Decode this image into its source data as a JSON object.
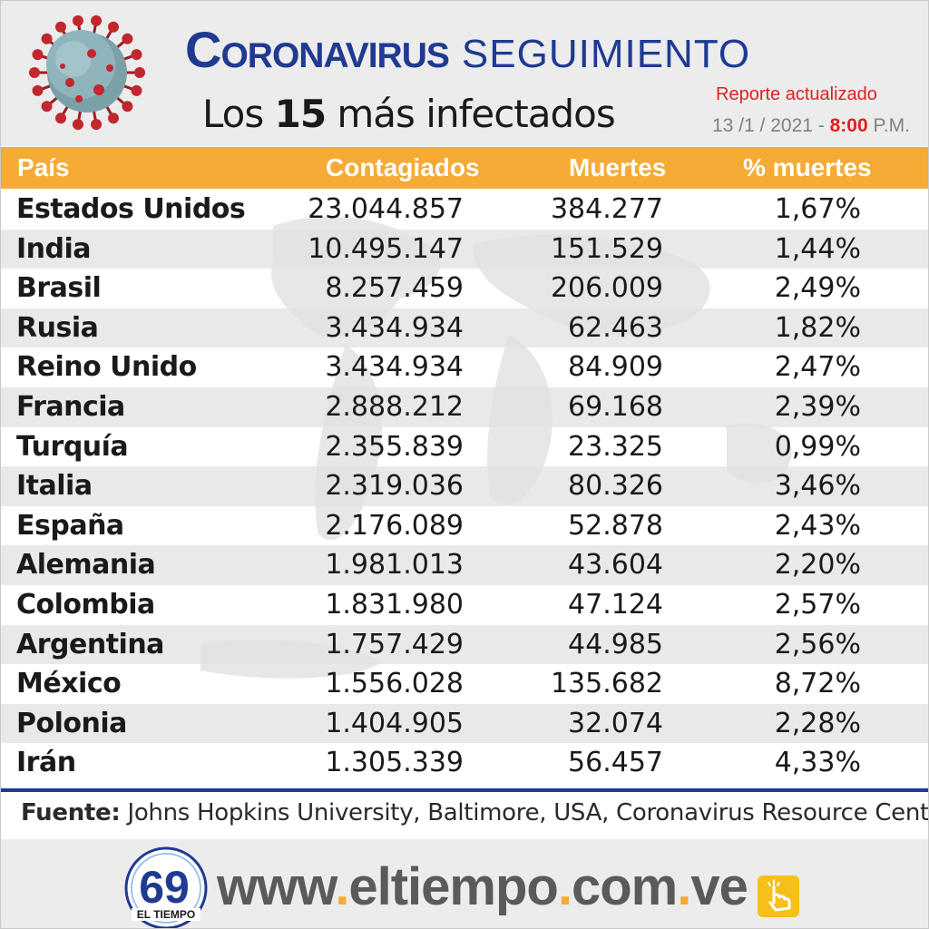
{
  "header": {
    "title_bold": "Coronavirus",
    "title_light": "SEGUIMIENTO",
    "subtitle_pre": "Los ",
    "subtitle_num": "15",
    "subtitle_post": " más infectados",
    "report_label": "Reporte actualizado",
    "report_date": "13 /1 / 2021 - ",
    "report_hour": "8:00",
    "report_ampm": " P.M."
  },
  "table": {
    "columns": [
      "País",
      "Contagiados",
      "Muertes",
      "% muertes"
    ],
    "rows": [
      {
        "country": "Estados Unidos",
        "cases": "23.044.857",
        "deaths": "384.277",
        "pct": "1,67%"
      },
      {
        "country": "India",
        "cases": "10.495.147",
        "deaths": "151.529",
        "pct": "1,44%"
      },
      {
        "country": "Brasil",
        "cases": "8.257.459",
        "deaths": "206.009",
        "pct": "2,49%"
      },
      {
        "country": "Rusia",
        "cases": "3.434.934",
        "deaths": "62.463",
        "pct": "1,82%"
      },
      {
        "country": "Reino Unido",
        "cases": "3.434.934",
        "deaths": "84.909",
        "pct": "2,47%"
      },
      {
        "country": "Francia",
        "cases": "2.888.212",
        "deaths": "69.168",
        "pct": "2,39%"
      },
      {
        "country": "Turquía",
        "cases": "2.355.839",
        "deaths": "23.325",
        "pct": "0,99%"
      },
      {
        "country": "Italia",
        "cases": "2.319.036",
        "deaths": "80.326",
        "pct": "3,46%"
      },
      {
        "country": "España",
        "cases": "2.176.089",
        "deaths": "52.878",
        "pct": "2,43%"
      },
      {
        "country": "Alemania",
        "cases": "1.981.013",
        "deaths": "43.604",
        "pct": "2,20%"
      },
      {
        "country": "Colombia",
        "cases": "1.831.980",
        "deaths": "47.124",
        "pct": "2,57%"
      },
      {
        "country": "Argentina",
        "cases": "1.757.429",
        "deaths": "44.985",
        "pct": "2,56%"
      },
      {
        "country": "México",
        "cases": "1.556.028",
        "deaths": "135.682",
        "pct": "8,72%"
      },
      {
        "country": "Polonia",
        "cases": "1.404.905",
        "deaths": "32.074",
        "pct": "2,28%"
      },
      {
        "country": "Irán",
        "cases": "1.305.339",
        "deaths": "56.457",
        "pct": "4,33%"
      }
    ]
  },
  "source": {
    "label": "Fuente:",
    "text": " Johns Hopkins University, Baltimore, USA, Coronavirus Resource Center"
  },
  "footer": {
    "logo_number": "69",
    "logo_name": "EL TIEMPO",
    "url_parts": [
      "www",
      ".",
      "eltiempo",
      ".",
      "com",
      ".",
      "ve"
    ]
  },
  "colors": {
    "brand_blue": "#1f3a93",
    "accent_orange": "#f5ab35",
    "alert_red": "#e02020"
  }
}
